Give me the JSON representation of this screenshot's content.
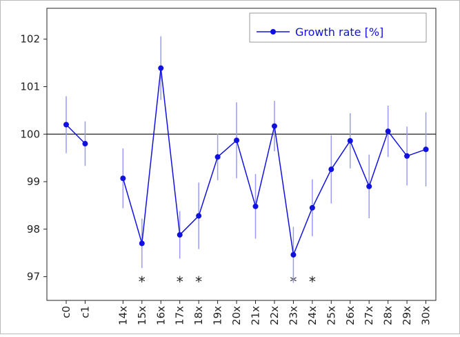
{
  "chart_data": {
    "type": "line",
    "categories": [
      "c0",
      "c1",
      null,
      "14x",
      "15x",
      "16x",
      "17x",
      "18x",
      "19x",
      "20x",
      "21x",
      "22x",
      "23x",
      "24x",
      "25x",
      "26x",
      "27x",
      "28x",
      "29x",
      "30x"
    ],
    "series": [
      {
        "name": "Growth rate [%]",
        "color": "#1010e0",
        "values": [
          100.2,
          99.8,
          null,
          99.07,
          97.7,
          101.39,
          97.88,
          98.28,
          99.52,
          99.87,
          98.48,
          100.17,
          97.46,
          98.45,
          99.26,
          99.86,
          98.9,
          100.06,
          99.54,
          99.68
        ],
        "errors": [
          0.6,
          0.47,
          null,
          0.63,
          0.52,
          0.67,
          0.5,
          0.7,
          0.49,
          0.8,
          0.68,
          0.53,
          0.59,
          0.6,
          0.72,
          0.58,
          0.67,
          0.54,
          0.62,
          0.78
        ]
      }
    ],
    "markers": [
      null,
      null,
      null,
      null,
      "*",
      null,
      "*",
      "*",
      null,
      null,
      null,
      null,
      "*",
      "*",
      null,
      null,
      null,
      null,
      null,
      null
    ],
    "reference_line": 100,
    "ylim": [
      96.5,
      102.65
    ],
    "yticks": [
      97,
      98,
      99,
      100,
      101,
      102
    ],
    "legend": "upper right"
  }
}
